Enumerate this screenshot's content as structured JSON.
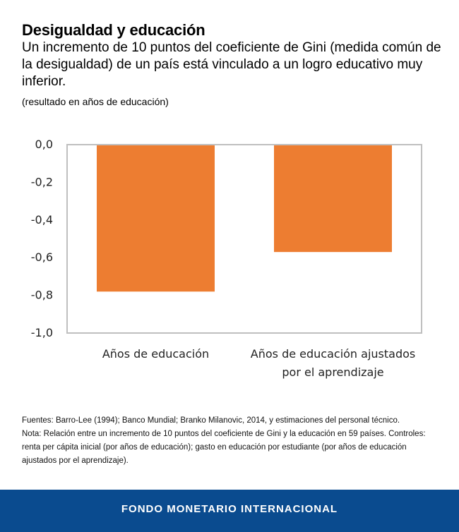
{
  "header": {
    "title": "Desigualdad y educación",
    "subtitle": "Un incremento de 10 puntos del coeficiente de Gini (medida común de la desigualdad) de un país está vinculado a un logro educativo muy inferior.",
    "unit": "(resultado en años de educación)"
  },
  "chart_data": {
    "type": "bar",
    "categories": [
      [
        "Años de educación"
      ],
      [
        "Años de educación ajustados",
        "por el aprendizaje"
      ]
    ],
    "values": [
      -0.78,
      -0.57
    ],
    "ylim": [
      -1.0,
      0.0
    ],
    "yticks": [
      0.0,
      -0.2,
      -0.4,
      -0.6,
      -0.8,
      -1.0
    ],
    "ytick_labels": [
      "0,0",
      "-0,2",
      "-0,4",
      "-0,6",
      "-0,8",
      "-1,0"
    ],
    "grid": false,
    "bar_color": "#ed7d31"
  },
  "notes": {
    "sources": "Fuentes: Barro-Lee  (1994); Banco Mundial; Branko Milanovic, 2014, y estimaciones del personal técnico.",
    "note": "Nota: Relación entre un incremento de 10 puntos del coeficiente de Gini y la educación en 59 países. Controles: renta per cápita inicial (por años de educación); gasto en educación por estudiante (por años de educación ajustados por el aprendizaje)."
  },
  "footer": {
    "label": "FONDO MONETARIO INTERNACIONAL"
  },
  "colors": {
    "footer_bg": "#0a4b8f",
    "bar": "#ed7d31"
  }
}
